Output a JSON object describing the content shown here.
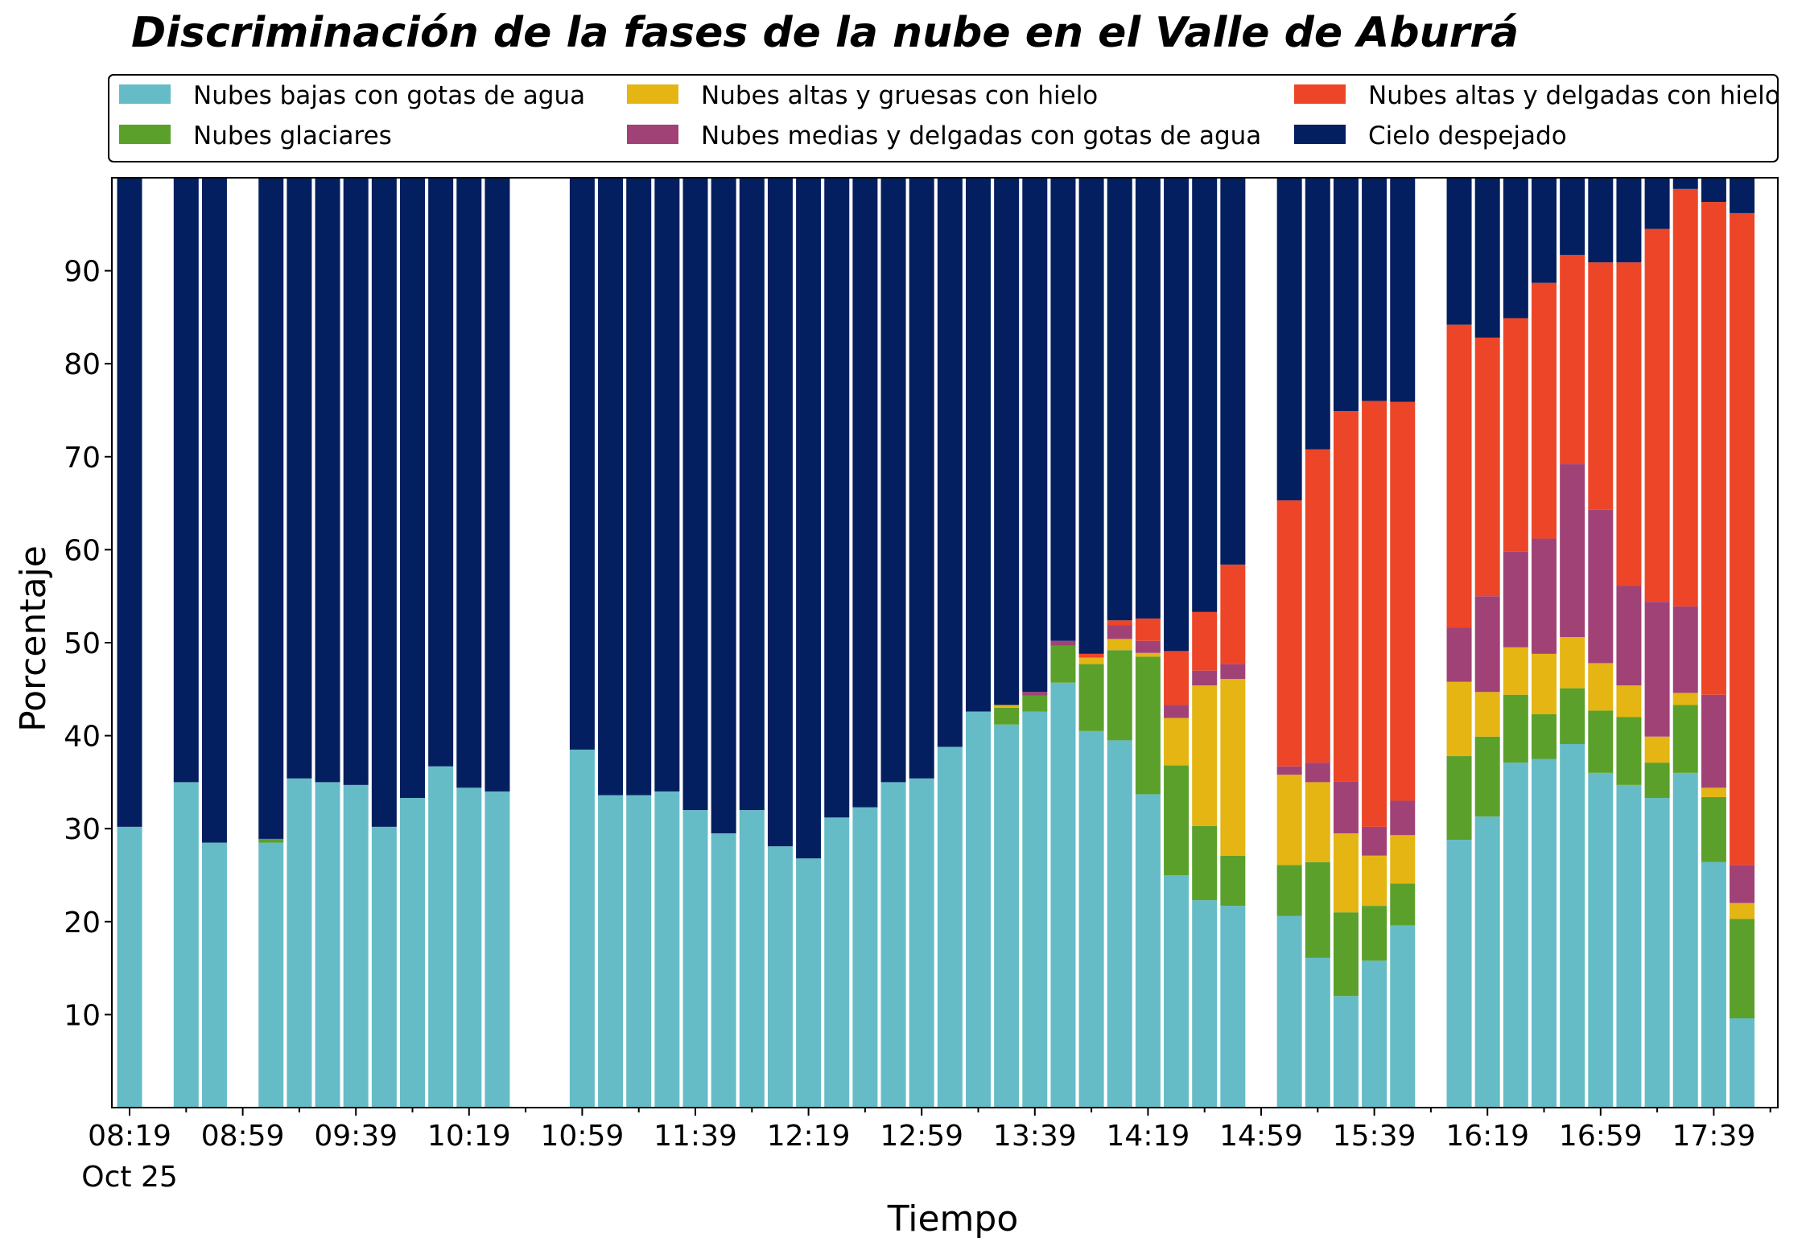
{
  "chart_data": {
    "type": "bar",
    "stacked": true,
    "title": "Discriminación de la fases de la nube en el Valle de Aburrá",
    "xlabel": "Tiempo",
    "ylabel": "Porcentaje",
    "ylim": [
      0,
      100
    ],
    "yticks": [
      10,
      20,
      30,
      40,
      50,
      60,
      70,
      80,
      90
    ],
    "x_start": "08:19",
    "x_interval_minutes": 10,
    "xtick_labels": [
      {
        "label": "08:19",
        "sub": "Oct 25"
      },
      {
        "label": "08:59"
      },
      {
        "label": "09:39"
      },
      {
        "label": "10:19"
      },
      {
        "label": "10:59"
      },
      {
        "label": "11:39"
      },
      {
        "label": "12:19"
      },
      {
        "label": "12:59"
      },
      {
        "label": "13:39"
      },
      {
        "label": "14:19"
      },
      {
        "label": "14:59"
      },
      {
        "label": "15:39"
      },
      {
        "label": "16:19"
      },
      {
        "label": "16:59"
      },
      {
        "label": "17:39"
      }
    ],
    "grid": false,
    "legend_position": "top",
    "series": [
      {
        "name": "Nubes bajas con gotas de agua",
        "color": "#65bcc7"
      },
      {
        "name": "Nubes glaciares",
        "color": "#5ba02b"
      },
      {
        "name": "Nubes altas y gruesas con hielo",
        "color": "#e4b513"
      },
      {
        "name": "Nubes medias y delgadas con gotas de agua",
        "color": "#a14277"
      },
      {
        "name": "Nubes altas y delgadas con hielo",
        "color": "#ed4528"
      },
      {
        "name": "Cielo despejado",
        "color": "#041f5f"
      }
    ],
    "bars": [
      {
        "t": "08:19",
        "v": [
          30.2,
          0,
          0,
          0,
          0,
          69.8
        ]
      },
      {
        "t": "08:29",
        "v": null
      },
      {
        "t": "08:39",
        "v": [
          35.0,
          0,
          0,
          0,
          0,
          65.0
        ]
      },
      {
        "t": "08:49",
        "v": [
          28.5,
          0,
          0,
          0,
          0,
          71.5
        ]
      },
      {
        "t": "08:59",
        "v": null
      },
      {
        "t": "09:09",
        "v": [
          28.5,
          0.4,
          0,
          0,
          0,
          71.1
        ]
      },
      {
        "t": "09:19",
        "v": [
          35.4,
          0,
          0,
          0,
          0,
          64.6
        ]
      },
      {
        "t": "09:29",
        "v": [
          35.0,
          0,
          0,
          0,
          0,
          65.0
        ]
      },
      {
        "t": "09:39",
        "v": [
          34.7,
          0,
          0,
          0,
          0,
          65.3
        ]
      },
      {
        "t": "09:49",
        "v": [
          30.2,
          0,
          0,
          0,
          0,
          69.8
        ]
      },
      {
        "t": "09:59",
        "v": [
          33.3,
          0,
          0,
          0,
          0,
          66.7
        ]
      },
      {
        "t": "10:09",
        "v": [
          36.7,
          0,
          0,
          0,
          0,
          63.3
        ]
      },
      {
        "t": "10:19",
        "v": [
          34.4,
          0,
          0,
          0,
          0,
          65.6
        ]
      },
      {
        "t": "10:29",
        "v": [
          34.0,
          0,
          0,
          0,
          0,
          66.0
        ]
      },
      {
        "t": "10:39",
        "v": null
      },
      {
        "t": "10:49",
        "v": null
      },
      {
        "t": "10:59",
        "v": [
          38.5,
          0,
          0,
          0,
          0,
          61.5
        ]
      },
      {
        "t": "11:09",
        "v": [
          33.6,
          0,
          0,
          0,
          0,
          66.4
        ]
      },
      {
        "t": "11:19",
        "v": [
          33.6,
          0,
          0,
          0,
          0,
          66.4
        ]
      },
      {
        "t": "11:29",
        "v": [
          34.0,
          0,
          0,
          0,
          0,
          66.0
        ]
      },
      {
        "t": "11:39",
        "v": [
          32.0,
          0,
          0,
          0,
          0,
          68.0
        ]
      },
      {
        "t": "11:49",
        "v": [
          29.5,
          0,
          0,
          0,
          0,
          70.5
        ]
      },
      {
        "t": "11:59",
        "v": [
          32.0,
          0,
          0,
          0,
          0,
          68.0
        ]
      },
      {
        "t": "12:09",
        "v": [
          28.1,
          0,
          0,
          0,
          0,
          71.9
        ]
      },
      {
        "t": "12:19",
        "v": [
          26.8,
          0,
          0,
          0,
          0,
          73.2
        ]
      },
      {
        "t": "12:29",
        "v": [
          31.2,
          0,
          0,
          0,
          0,
          68.8
        ]
      },
      {
        "t": "12:39",
        "v": [
          32.3,
          0,
          0,
          0,
          0,
          67.7
        ]
      },
      {
        "t": "12:49",
        "v": [
          35.0,
          0,
          0,
          0,
          0,
          65.0
        ]
      },
      {
        "t": "12:59",
        "v": [
          35.4,
          0,
          0,
          0,
          0,
          64.6
        ]
      },
      {
        "t": "13:09",
        "v": [
          38.8,
          0,
          0,
          0,
          0,
          61.2
        ]
      },
      {
        "t": "13:19",
        "v": [
          42.6,
          0,
          0,
          0,
          0,
          57.4
        ]
      },
      {
        "t": "13:29",
        "v": [
          41.2,
          1.8,
          0.3,
          0,
          0,
          56.7
        ]
      },
      {
        "t": "13:39",
        "v": [
          42.6,
          1.7,
          0,
          0.4,
          0,
          55.3
        ]
      },
      {
        "t": "13:49",
        "v": [
          45.7,
          4.0,
          0,
          0.5,
          0,
          49.8
        ]
      },
      {
        "t": "13:59",
        "v": [
          40.5,
          7.2,
          0.7,
          0,
          0.4,
          51.2
        ]
      },
      {
        "t": "14:09",
        "v": [
          39.5,
          9.7,
          1.2,
          1.5,
          0.5,
          47.6
        ]
      },
      {
        "t": "14:19",
        "v": [
          33.7,
          14.8,
          0.4,
          1.3,
          2.4,
          47.4
        ]
      },
      {
        "t": "14:29",
        "v": [
          25.0,
          11.8,
          5.1,
          1.4,
          5.8,
          50.9
        ]
      },
      {
        "t": "14:39",
        "v": [
          22.3,
          8.0,
          15.1,
          1.6,
          6.3,
          46.7
        ]
      },
      {
        "t": "14:49",
        "v": [
          21.7,
          5.4,
          19.0,
          1.6,
          10.7,
          41.6
        ]
      },
      {
        "t": "14:59",
        "v": null
      },
      {
        "t": "15:09",
        "v": [
          20.6,
          5.5,
          9.7,
          0.9,
          28.6,
          34.7
        ]
      },
      {
        "t": "15:19",
        "v": [
          16.1,
          10.3,
          8.6,
          2.1,
          33.7,
          29.2
        ]
      },
      {
        "t": "15:29",
        "v": [
          12.0,
          9.0,
          8.5,
          5.6,
          39.8,
          25.1
        ]
      },
      {
        "t": "15:39",
        "v": [
          15.8,
          5.9,
          5.4,
          3.1,
          45.8,
          24.0
        ]
      },
      {
        "t": "15:49",
        "v": [
          19.6,
          4.5,
          5.2,
          3.7,
          42.9,
          24.1
        ]
      },
      {
        "t": "15:59",
        "v": null
      },
      {
        "t": "16:09",
        "v": [
          28.8,
          9.0,
          8.0,
          5.8,
          32.6,
          15.8
        ]
      },
      {
        "t": "16:19",
        "v": [
          31.3,
          8.6,
          4.8,
          10.3,
          27.8,
          17.2
        ]
      },
      {
        "t": "16:29",
        "v": [
          37.1,
          7.3,
          5.1,
          10.3,
          25.1,
          15.1
        ]
      },
      {
        "t": "16:39",
        "v": [
          37.5,
          4.8,
          6.5,
          12.4,
          27.5,
          11.3
        ]
      },
      {
        "t": "16:49",
        "v": [
          39.1,
          6.0,
          5.5,
          18.6,
          22.5,
          8.3
        ]
      },
      {
        "t": "16:59",
        "v": [
          36.0,
          6.7,
          5.1,
          16.5,
          26.6,
          9.1
        ]
      },
      {
        "t": "17:09",
        "v": [
          34.7,
          7.3,
          3.4,
          10.7,
          34.8,
          9.1
        ]
      },
      {
        "t": "17:19",
        "v": [
          33.3,
          3.8,
          2.8,
          14.5,
          40.1,
          5.5
        ]
      },
      {
        "t": "17:29",
        "v": [
          36.0,
          7.3,
          1.3,
          9.3,
          44.9,
          1.2
        ]
      },
      {
        "t": "17:39",
        "v": [
          26.4,
          7.0,
          1.0,
          10.0,
          53.0,
          2.6
        ]
      },
      {
        "t": "17:49",
        "v": [
          9.6,
          10.7,
          1.7,
          4.1,
          70.1,
          3.8
        ]
      }
    ]
  }
}
